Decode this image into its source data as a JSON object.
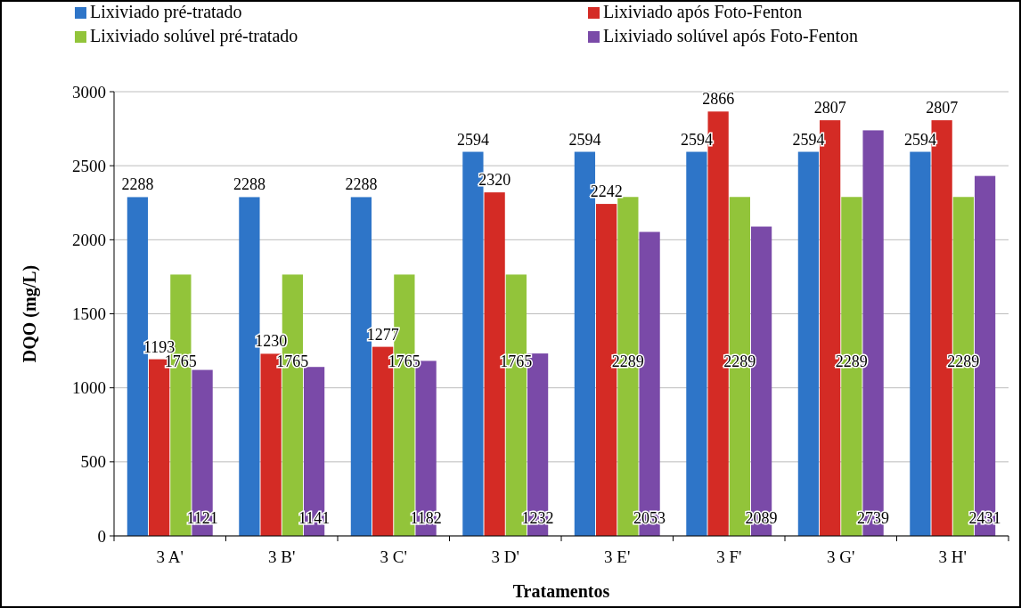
{
  "chart_data": {
    "type": "bar",
    "xlabel": "Tratamentos",
    "ylabel": "DQO (mg/L)",
    "categories": [
      "3 A'",
      "3 B'",
      "3 C'",
      "3 D'",
      "3 E'",
      "3 F'",
      "3 G'",
      "3 H'"
    ],
    "series": [
      {
        "name": "Lixiviado pré-tratado",
        "color": "#2e75c8",
        "values": [
          2288,
          2288,
          2288,
          2594,
          2594,
          2594,
          2594,
          2594
        ]
      },
      {
        "name": "Lixiviado após Foto-Fenton",
        "color": "#d42b25",
        "values": [
          1193,
          1230,
          1277,
          2320,
          2242,
          2866,
          2807,
          2807
        ]
      },
      {
        "name": "Lixiviado solúvel pré-tratado",
        "color": "#92c43a",
        "values": [
          1765,
          1765,
          1765,
          1765,
          2289,
          2289,
          2289,
          2289
        ]
      },
      {
        "name": "Lixiviado solúvel após Foto-Fenton",
        "color": "#7a4aa8",
        "values": [
          1121,
          1141,
          1182,
          1232,
          2053,
          2089,
          2739,
          2431
        ]
      }
    ],
    "ylim": [
      0,
      3000
    ],
    "yticks": [
      0,
      500,
      1000,
      1500,
      2000,
      2500,
      3000
    ],
    "grid": "y",
    "legend": "top",
    "data_labels": true
  }
}
